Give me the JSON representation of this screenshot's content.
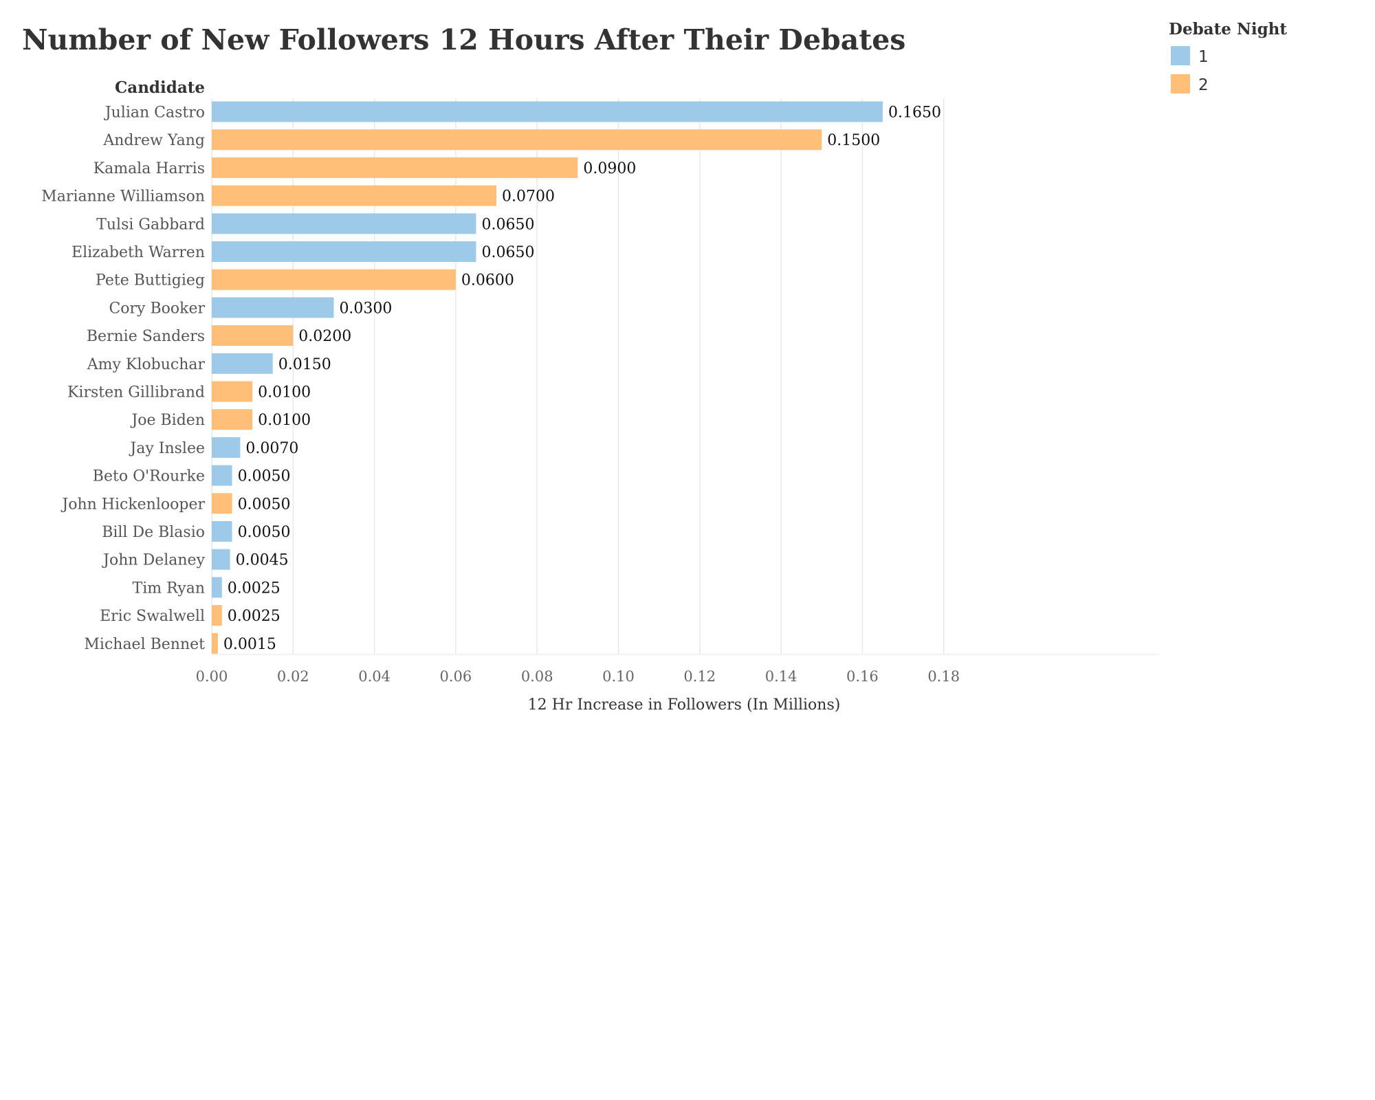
{
  "chart_data": {
    "type": "bar",
    "orientation": "horizontal",
    "title": "Number of New Followers 12 Hours After Their Debates",
    "category_header": "Candidate",
    "xlabel": "12 Hr Increase in Followers (In Millions)",
    "xlim": [
      0,
      0.185
    ],
    "xticks": [
      0,
      0.02,
      0.04,
      0.06,
      0.08,
      0.1,
      0.12,
      0.14,
      0.16,
      0.18
    ],
    "xtick_labels": [
      "0.00",
      "0.02",
      "0.04",
      "0.06",
      "0.08",
      "0.10",
      "0.12",
      "0.14",
      "0.16",
      "0.18"
    ],
    "grid": "vertical",
    "legend": {
      "title": "Debate Night",
      "placement": "top-right",
      "entries": [
        {
          "label": "1",
          "color": "#9ecae9"
        },
        {
          "label": "2",
          "color": "#ffbf79"
        }
      ]
    },
    "categories": [
      "Julian Castro",
      "Andrew Yang",
      "Kamala Harris",
      "Marianne Williamson",
      "Tulsi Gabbard",
      "Elizabeth Warren",
      "Pete Buttigieg",
      "Cory Booker",
      "Bernie Sanders",
      "Amy Klobuchar",
      "Kirsten Gillibrand",
      "Joe Biden",
      "Jay Inslee",
      "Beto O'Rourke",
      "John Hickenlooper",
      "Bill De Blasio",
      "John Delaney",
      "Tim Ryan",
      "Eric Swalwell",
      "Michael Bennet"
    ],
    "values": [
      0.165,
      0.15,
      0.09,
      0.07,
      0.065,
      0.065,
      0.06,
      0.03,
      0.02,
      0.015,
      0.01,
      0.01,
      0.007,
      0.005,
      0.005,
      0.005,
      0.0045,
      0.0025,
      0.0025,
      0.0015
    ],
    "value_labels": [
      "0.1650",
      "0.1500",
      "0.0900",
      "0.0700",
      "0.0650",
      "0.0650",
      "0.0600",
      "0.0300",
      "0.0200",
      "0.0150",
      "0.0100",
      "0.0100",
      "0.0070",
      "0.0050",
      "0.0050",
      "0.0050",
      "0.0045",
      "0.0025",
      "0.0025",
      "0.0015"
    ],
    "debate_night": [
      "1",
      "2",
      "2",
      "2",
      "1",
      "1",
      "2",
      "1",
      "2",
      "1",
      "2",
      "2",
      "1",
      "1",
      "2",
      "1",
      "1",
      "1",
      "2",
      "2"
    ]
  }
}
